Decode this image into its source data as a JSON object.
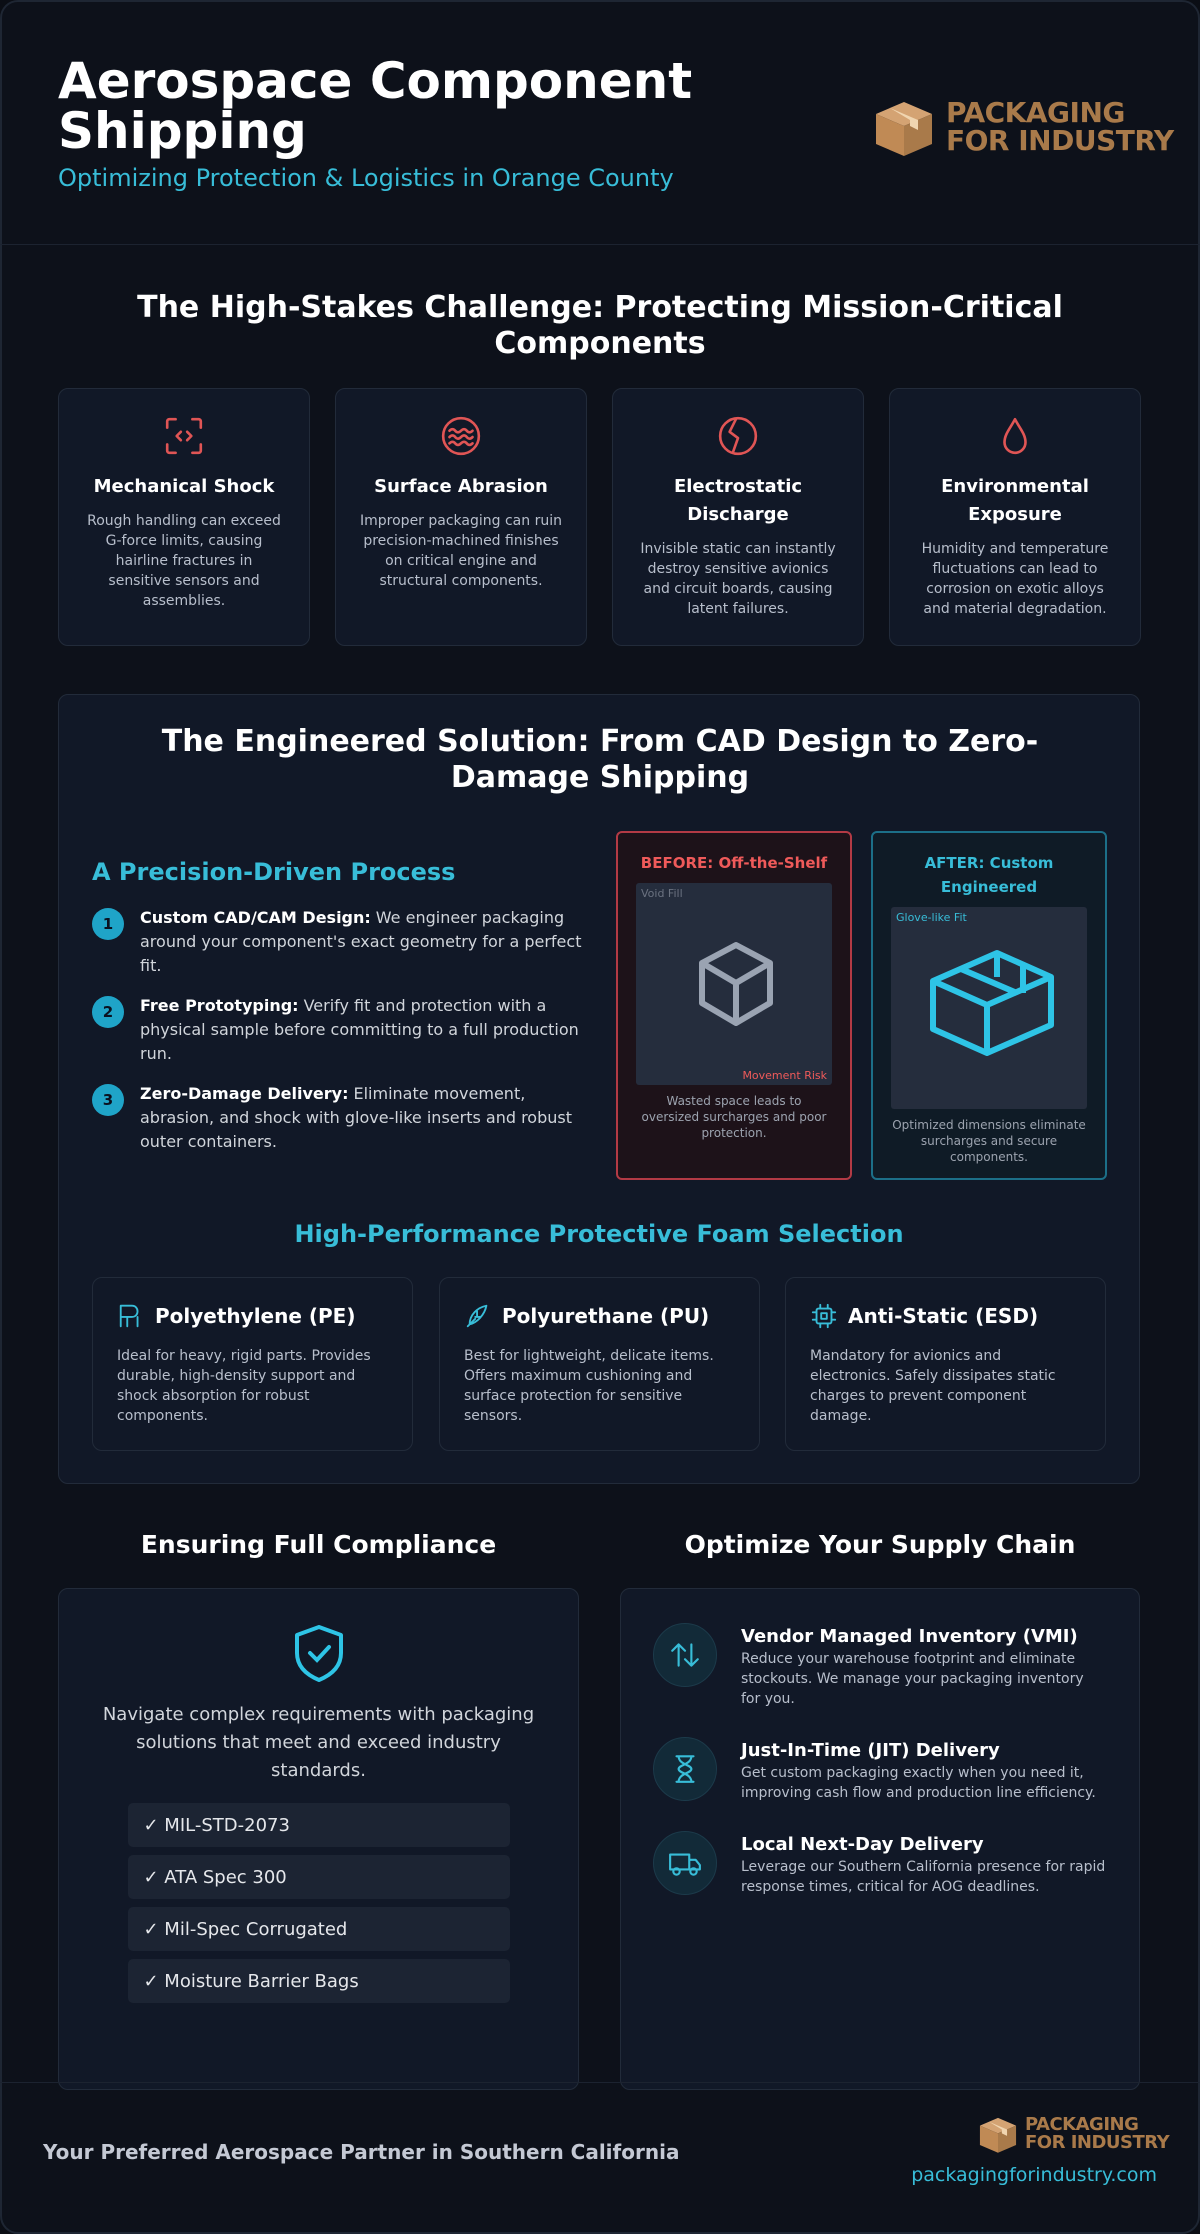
{
  "header": {
    "title": "Aerospace Component Shipping",
    "subtitle": "Optimizing Protection & Logistics in Orange County"
  },
  "logo": {
    "line1": "PACKAGING",
    "line2": "FOR INDUSTRY"
  },
  "challenge": {
    "heading": "The High-Stakes Challenge: Protecting Mission-Critical Components",
    "cards": [
      {
        "title": "Mechanical Shock",
        "text": "Rough handling can exceed G-force limits, causing hairline fractures in sensitive sensors and assemblies."
      },
      {
        "title": "Surface Abrasion",
        "text": "Improper packaging can ruin precision-machined finishes on critical engine and structural components."
      },
      {
        "title": "Electrostatic Discharge",
        "text": "Invisible static can instantly destroy sensitive avionics and circuit boards, causing latent failures."
      },
      {
        "title": "Environmental Exposure",
        "text": "Humidity and temperature fluctuations can lead to corrosion on exotic alloys and material degradation."
      }
    ]
  },
  "solution": {
    "heading": "The Engineered Solution: From CAD Design to Zero-Damage Shipping",
    "process": {
      "heading": "A Precision-Driven Process",
      "steps": [
        {
          "number": 1,
          "label": "Custom CAD/CAM Design:",
          "text": "We engineer packaging around your component's exact geometry for a perfect fit."
        },
        {
          "number": 2,
          "label": "Free Prototyping:",
          "text": "Verify fit and protection with a physical sample before committing to a full production run."
        },
        {
          "number": 3,
          "label": "Zero-Damage Delivery:",
          "text": "Eliminate movement, abrasion, and shock with glove-like inserts and robust outer containers."
        }
      ]
    },
    "before": {
      "title": "BEFORE: Off-the-Shelf",
      "tag_top": "Void Fill",
      "tag_bottom": "Movement Risk",
      "caption": "Wasted space leads to oversized surcharges and poor protection."
    },
    "after": {
      "title": "AFTER: Custom Engineered",
      "tag": "Glove-like Fit",
      "caption": "Optimized dimensions eliminate surcharges and secure components."
    },
    "foams": {
      "heading": "High-Performance Protective Foam Selection",
      "items": [
        {
          "title": "Polyethylene (PE)",
          "text": "Ideal for heavy, rigid parts. Provides durable, high-density support and shock absorption for robust components."
        },
        {
          "title": "Polyurethane (PU)",
          "text": "Best for lightweight, delicate items. Offers maximum cushioning and surface protection for sensitive sensors."
        },
        {
          "title": "Anti-Static (ESD)",
          "text": "Mandatory for avionics and electronics. Safely dissipates static charges to prevent component damage."
        }
      ]
    }
  },
  "compliance": {
    "heading": "Ensuring Full Compliance",
    "text": "Navigate complex requirements with packaging solutions that meet and exceed industry standards.",
    "items": [
      "✓ MIL-STD-2073",
      "✓ ATA Spec 300",
      "✓ Mil-Spec Corrugated",
      "✓ Moisture Barrier Bags"
    ]
  },
  "supply": {
    "heading": "Optimize Your Supply Chain",
    "items": [
      {
        "title": "Vendor Managed Inventory (VMI)",
        "text": "Reduce your warehouse footprint and eliminate stockouts. We manage your packaging inventory for you."
      },
      {
        "title": "Just-In-Time (JIT) Delivery",
        "text": "Get custom packaging exactly when you need it, improving cash flow and production line efficiency."
      },
      {
        "title": "Local Next-Day Delivery",
        "text": "Leverage our Southern California presence for rapid response times, critical for AOG deadlines."
      }
    ]
  },
  "footer": {
    "tagline": "Your Preferred Aerospace Partner in Southern California",
    "url": "packagingforindustry.com"
  }
}
